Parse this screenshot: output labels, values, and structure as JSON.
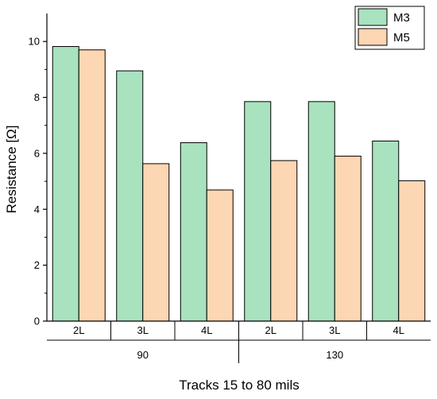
{
  "chart_data": {
    "type": "bar",
    "title": "",
    "xlabel": "Tracks 15 to 80 mils",
    "ylabel": "Resistance [Ω]",
    "ylim": [
      0,
      11
    ],
    "yticks": [
      "0",
      "2",
      "4",
      "6",
      "8",
      "10"
    ],
    "grid": false,
    "legend_position": "top-right",
    "categories": [
      "2L",
      "3L",
      "4L",
      "2L",
      "3L",
      "4L"
    ],
    "groups": [
      {
        "label": "90",
        "categories": [
          "2L",
          "3L",
          "4L"
        ]
      },
      {
        "label": "130",
        "categories": [
          "2L",
          "3L",
          "4L"
        ]
      }
    ],
    "series": [
      {
        "name": "M3",
        "color": "#a8e2be",
        "values": [
          9.82,
          8.95,
          6.38,
          7.85,
          7.85,
          6.44
        ]
      },
      {
        "name": "M5",
        "color": "#fdd6b3",
        "values": [
          9.7,
          5.63,
          4.69,
          5.74,
          5.9,
          5.02
        ]
      }
    ]
  }
}
